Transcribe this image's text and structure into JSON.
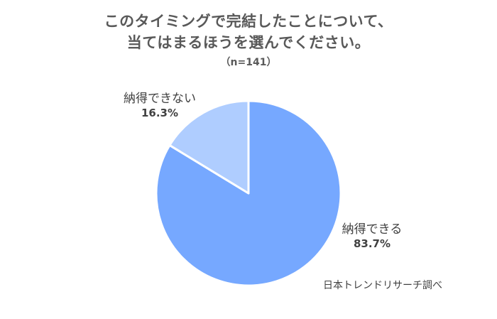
{
  "chart_data": {
    "type": "pie",
    "title_lines": [
      "このタイミングで完結したことについて、",
      "当てはまるほうを選んでください。"
    ],
    "subtitle": "（n=141）",
    "slices": [
      {
        "label": "納得できる",
        "value": 83.7,
        "value_label": "83.7%",
        "color": "#76a8ff"
      },
      {
        "label": "納得できない",
        "value": 16.3,
        "value_label": "16.3%",
        "color": "#afcdff"
      }
    ]
  },
  "source": "日本トレンドリサーチ調べ"
}
